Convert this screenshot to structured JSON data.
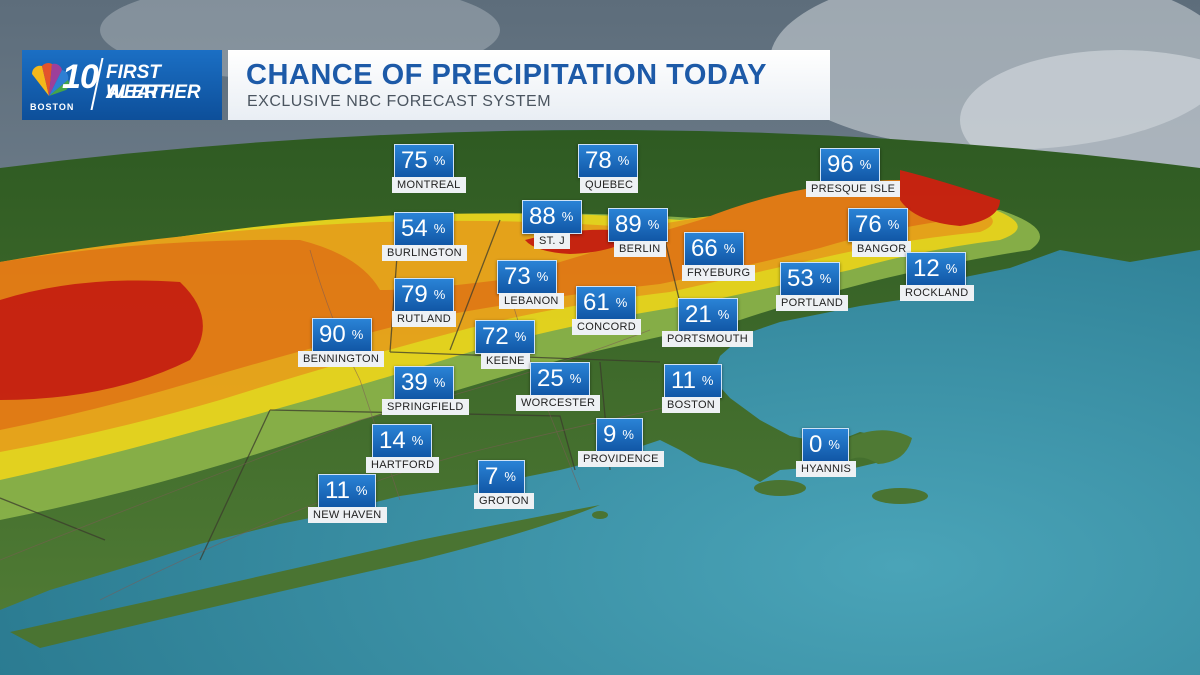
{
  "header": {
    "logo_number": "10",
    "logo_city": "BOSTON",
    "logo_line1": "FIRST ALERT",
    "logo_line2": "WEATHER",
    "title": "CHANCE OF PRECIPITATION TODAY",
    "subtitle": "EXCLUSIVE NBC FORECAST SYSTEM"
  },
  "percent_symbol": "%",
  "colors": {
    "label_blue": "#1a6cc2",
    "ocean": "#3e98ac",
    "high_red": "#d21f0f",
    "orange": "#ee7d14",
    "yellow": "#f0da1e"
  },
  "cities": [
    {
      "name": "MONTREAL",
      "value": "75"
    },
    {
      "name": "QUEBEC",
      "value": "78"
    },
    {
      "name": "PRESQUE ISLE",
      "value": "96"
    },
    {
      "name": "BURLINGTON",
      "value": "54"
    },
    {
      "name": "ST. J",
      "value": "88"
    },
    {
      "name": "BERLIN",
      "value": "89"
    },
    {
      "name": "BANGOR",
      "value": "76"
    },
    {
      "name": "FRYEBURG",
      "value": "66"
    },
    {
      "name": "LEBANON",
      "value": "73"
    },
    {
      "name": "ROCKLAND",
      "value": "12"
    },
    {
      "name": "RUTLAND",
      "value": "79"
    },
    {
      "name": "PORTLAND",
      "value": "53"
    },
    {
      "name": "CONCORD",
      "value": "61"
    },
    {
      "name": "BENNINGTON",
      "value": "90"
    },
    {
      "name": "KEENE",
      "value": "72"
    },
    {
      "name": "PORTSMOUTH",
      "value": "21"
    },
    {
      "name": "SPRINGFIELD",
      "value": "39"
    },
    {
      "name": "WORCESTER",
      "value": "25"
    },
    {
      "name": "BOSTON",
      "value": "11"
    },
    {
      "name": "HARTFORD",
      "value": "14"
    },
    {
      "name": "PROVIDENCE",
      "value": "9"
    },
    {
      "name": "HYANNIS",
      "value": "0"
    },
    {
      "name": "NEW HAVEN",
      "value": "11"
    },
    {
      "name": "GROTON",
      "value": "7"
    }
  ]
}
